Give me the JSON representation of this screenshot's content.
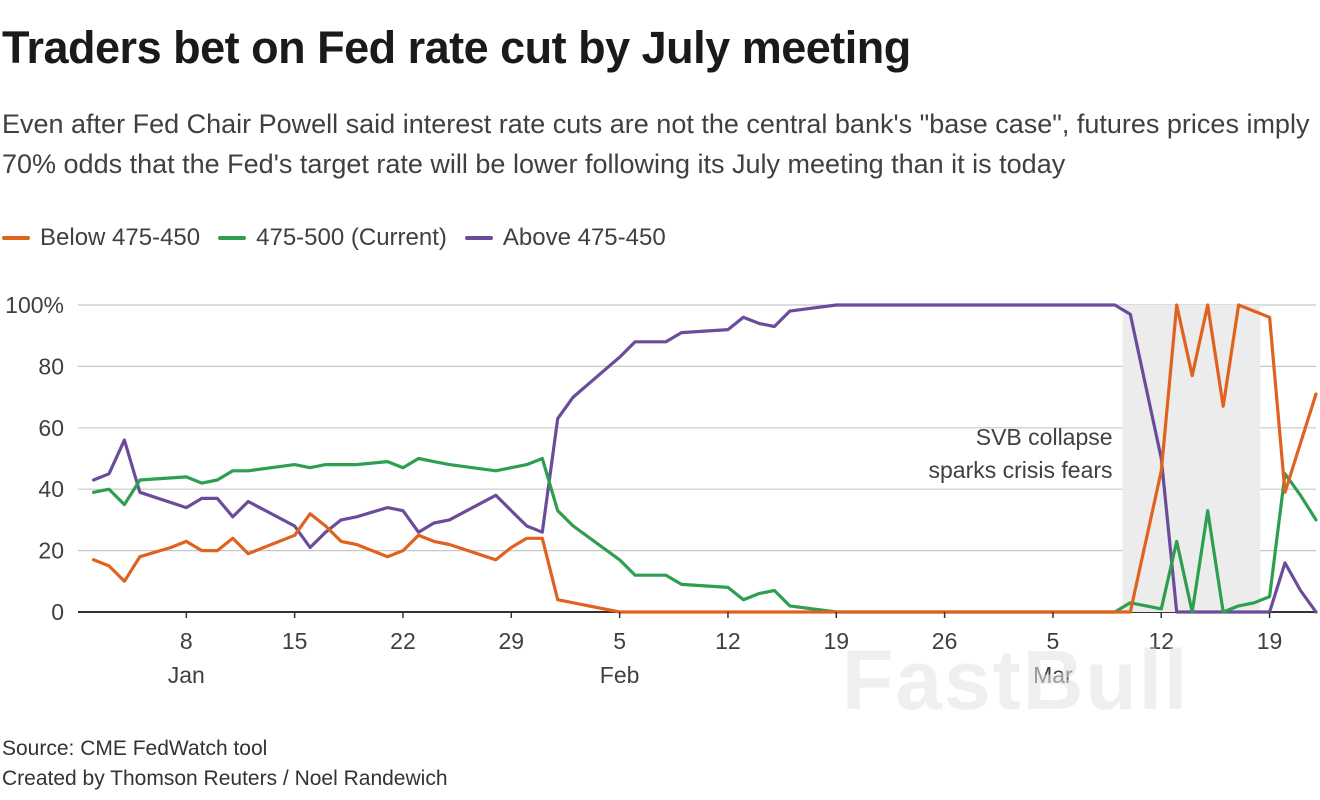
{
  "header": {
    "title": "Traders bet on Fed rate cut by July meeting",
    "subtitle": "Even after Fed Chair Powell said interest rate cuts are not the central bank's \"base case\", futures prices imply 70% odds that the Fed's target rate will be lower following its July meeting than it is today"
  },
  "footer": {
    "source": "Source: CME FedWatch tool",
    "credit": "Created by Thomson Reuters / Noel Randewich"
  },
  "watermark": "FastBull",
  "chart_data": {
    "type": "line",
    "title": "Traders bet on Fed rate cut by July meeting",
    "xlabel": "",
    "ylabel": "",
    "x_unit": "days since Jan 1, 2023",
    "xlim": [
      0,
      80
    ],
    "ylim": [
      0,
      100
    ],
    "grid": true,
    "legend_position": "top-left",
    "y_ticks": [
      {
        "value": 0,
        "label": "0"
      },
      {
        "value": 20,
        "label": "20"
      },
      {
        "value": 40,
        "label": "40"
      },
      {
        "value": 60,
        "label": "60"
      },
      {
        "value": 80,
        "label": "80"
      },
      {
        "value": 100,
        "label": "100%"
      }
    ],
    "x_ticks": [
      {
        "value": 7,
        "label": "8",
        "month": "Jan"
      },
      {
        "value": 14,
        "label": "15"
      },
      {
        "value": 21,
        "label": "22"
      },
      {
        "value": 28,
        "label": "29"
      },
      {
        "value": 35,
        "label": "5",
        "month": "Feb"
      },
      {
        "value": 42,
        "label": "12"
      },
      {
        "value": 49,
        "label": "19"
      },
      {
        "value": 56,
        "label": "26"
      },
      {
        "value": 63,
        "label": "5",
        "month": "Mar"
      },
      {
        "value": 70,
        "label": "12"
      },
      {
        "value": 77,
        "label": "19"
      }
    ],
    "shaded_region": {
      "x": [
        67.5,
        76.4
      ],
      "label": [
        "SVB collapse",
        "sparks crisis fears"
      ]
    },
    "series": [
      {
        "name": "Below 475-450",
        "color": "#e0621f",
        "x": [
          1,
          2,
          3,
          4,
          6,
          7,
          8,
          9,
          10,
          11,
          14,
          15,
          16,
          17,
          18,
          20,
          21,
          22,
          23,
          24,
          27,
          28,
          29,
          30,
          31,
          32,
          35,
          36,
          37,
          38,
          39,
          42,
          43,
          44,
          45,
          46,
          49,
          50,
          51,
          52,
          53,
          56,
          57,
          58,
          59,
          60,
          63,
          64,
          65,
          66,
          67,
          68,
          70,
          71,
          72,
          73,
          74,
          75,
          76,
          77,
          78,
          79,
          80
        ],
        "values": [
          17,
          15,
          10,
          18,
          21,
          23,
          20,
          20,
          24,
          19,
          25,
          32,
          28,
          23,
          22,
          18,
          20,
          25,
          23,
          22,
          17,
          21,
          24,
          24,
          4,
          3,
          0,
          0,
          0,
          0,
          0,
          0,
          0,
          0,
          0,
          0,
          0,
          0,
          0,
          0,
          0,
          0,
          0,
          0,
          0,
          0,
          0,
          0,
          0,
          0,
          0,
          0,
          46,
          100,
          77,
          100,
          67,
          100,
          98,
          96,
          39,
          55,
          71
        ]
      },
      {
        "name": "475-500 (Current)",
        "color": "#2e9e4f",
        "x": [
          1,
          2,
          3,
          4,
          7,
          8,
          9,
          10,
          11,
          14,
          15,
          16,
          17,
          18,
          20,
          21,
          22,
          23,
          24,
          27,
          28,
          29,
          30,
          31,
          32,
          35,
          36,
          37,
          38,
          39,
          42,
          43,
          44,
          45,
          46,
          49,
          50,
          51,
          52,
          53,
          56,
          57,
          58,
          59,
          60,
          63,
          64,
          65,
          66,
          67,
          68,
          70,
          71,
          72,
          73,
          74,
          75,
          76,
          77,
          78,
          79,
          80
        ],
        "values": [
          39,
          40,
          35,
          43,
          44,
          42,
          43,
          46,
          46,
          48,
          47,
          48,
          48,
          48,
          49,
          47,
          50,
          49,
          48,
          46,
          47,
          48,
          50,
          33,
          28,
          17,
          12,
          12,
          12,
          9,
          8,
          4,
          6,
          7,
          2,
          0,
          0,
          0,
          0,
          0,
          0,
          0,
          0,
          0,
          0,
          0,
          0,
          0,
          0,
          0,
          3,
          1,
          23,
          0,
          33,
          0,
          2,
          3,
          5,
          45,
          38,
          30
        ]
      },
      {
        "name": "Above 475-450",
        "color": "#6b4c9a",
        "x": [
          1,
          2,
          3,
          4,
          7,
          8,
          9,
          10,
          11,
          14,
          15,
          16,
          17,
          18,
          20,
          21,
          22,
          23,
          24,
          27,
          28,
          29,
          30,
          31,
          32,
          35,
          36,
          37,
          38,
          39,
          42,
          43,
          44,
          45,
          46,
          49,
          50,
          51,
          52,
          53,
          56,
          57,
          58,
          59,
          60,
          63,
          64,
          65,
          66,
          67,
          68,
          70,
          71,
          72,
          73,
          74,
          75,
          76,
          77,
          78,
          79,
          80
        ],
        "values": [
          43,
          45,
          56,
          39,
          34,
          37,
          37,
          31,
          36,
          28,
          21,
          26,
          30,
          31,
          34,
          33,
          26,
          29,
          30,
          38,
          33,
          28,
          26,
          63,
          70,
          83,
          88,
          88,
          88,
          91,
          92,
          96,
          94,
          93,
          98,
          100,
          100,
          100,
          100,
          100,
          100,
          100,
          100,
          100,
          100,
          100,
          100,
          100,
          100,
          100,
          97,
          50,
          0,
          0,
          0,
          0,
          0,
          0,
          0,
          16,
          7,
          0
        ]
      }
    ]
  }
}
